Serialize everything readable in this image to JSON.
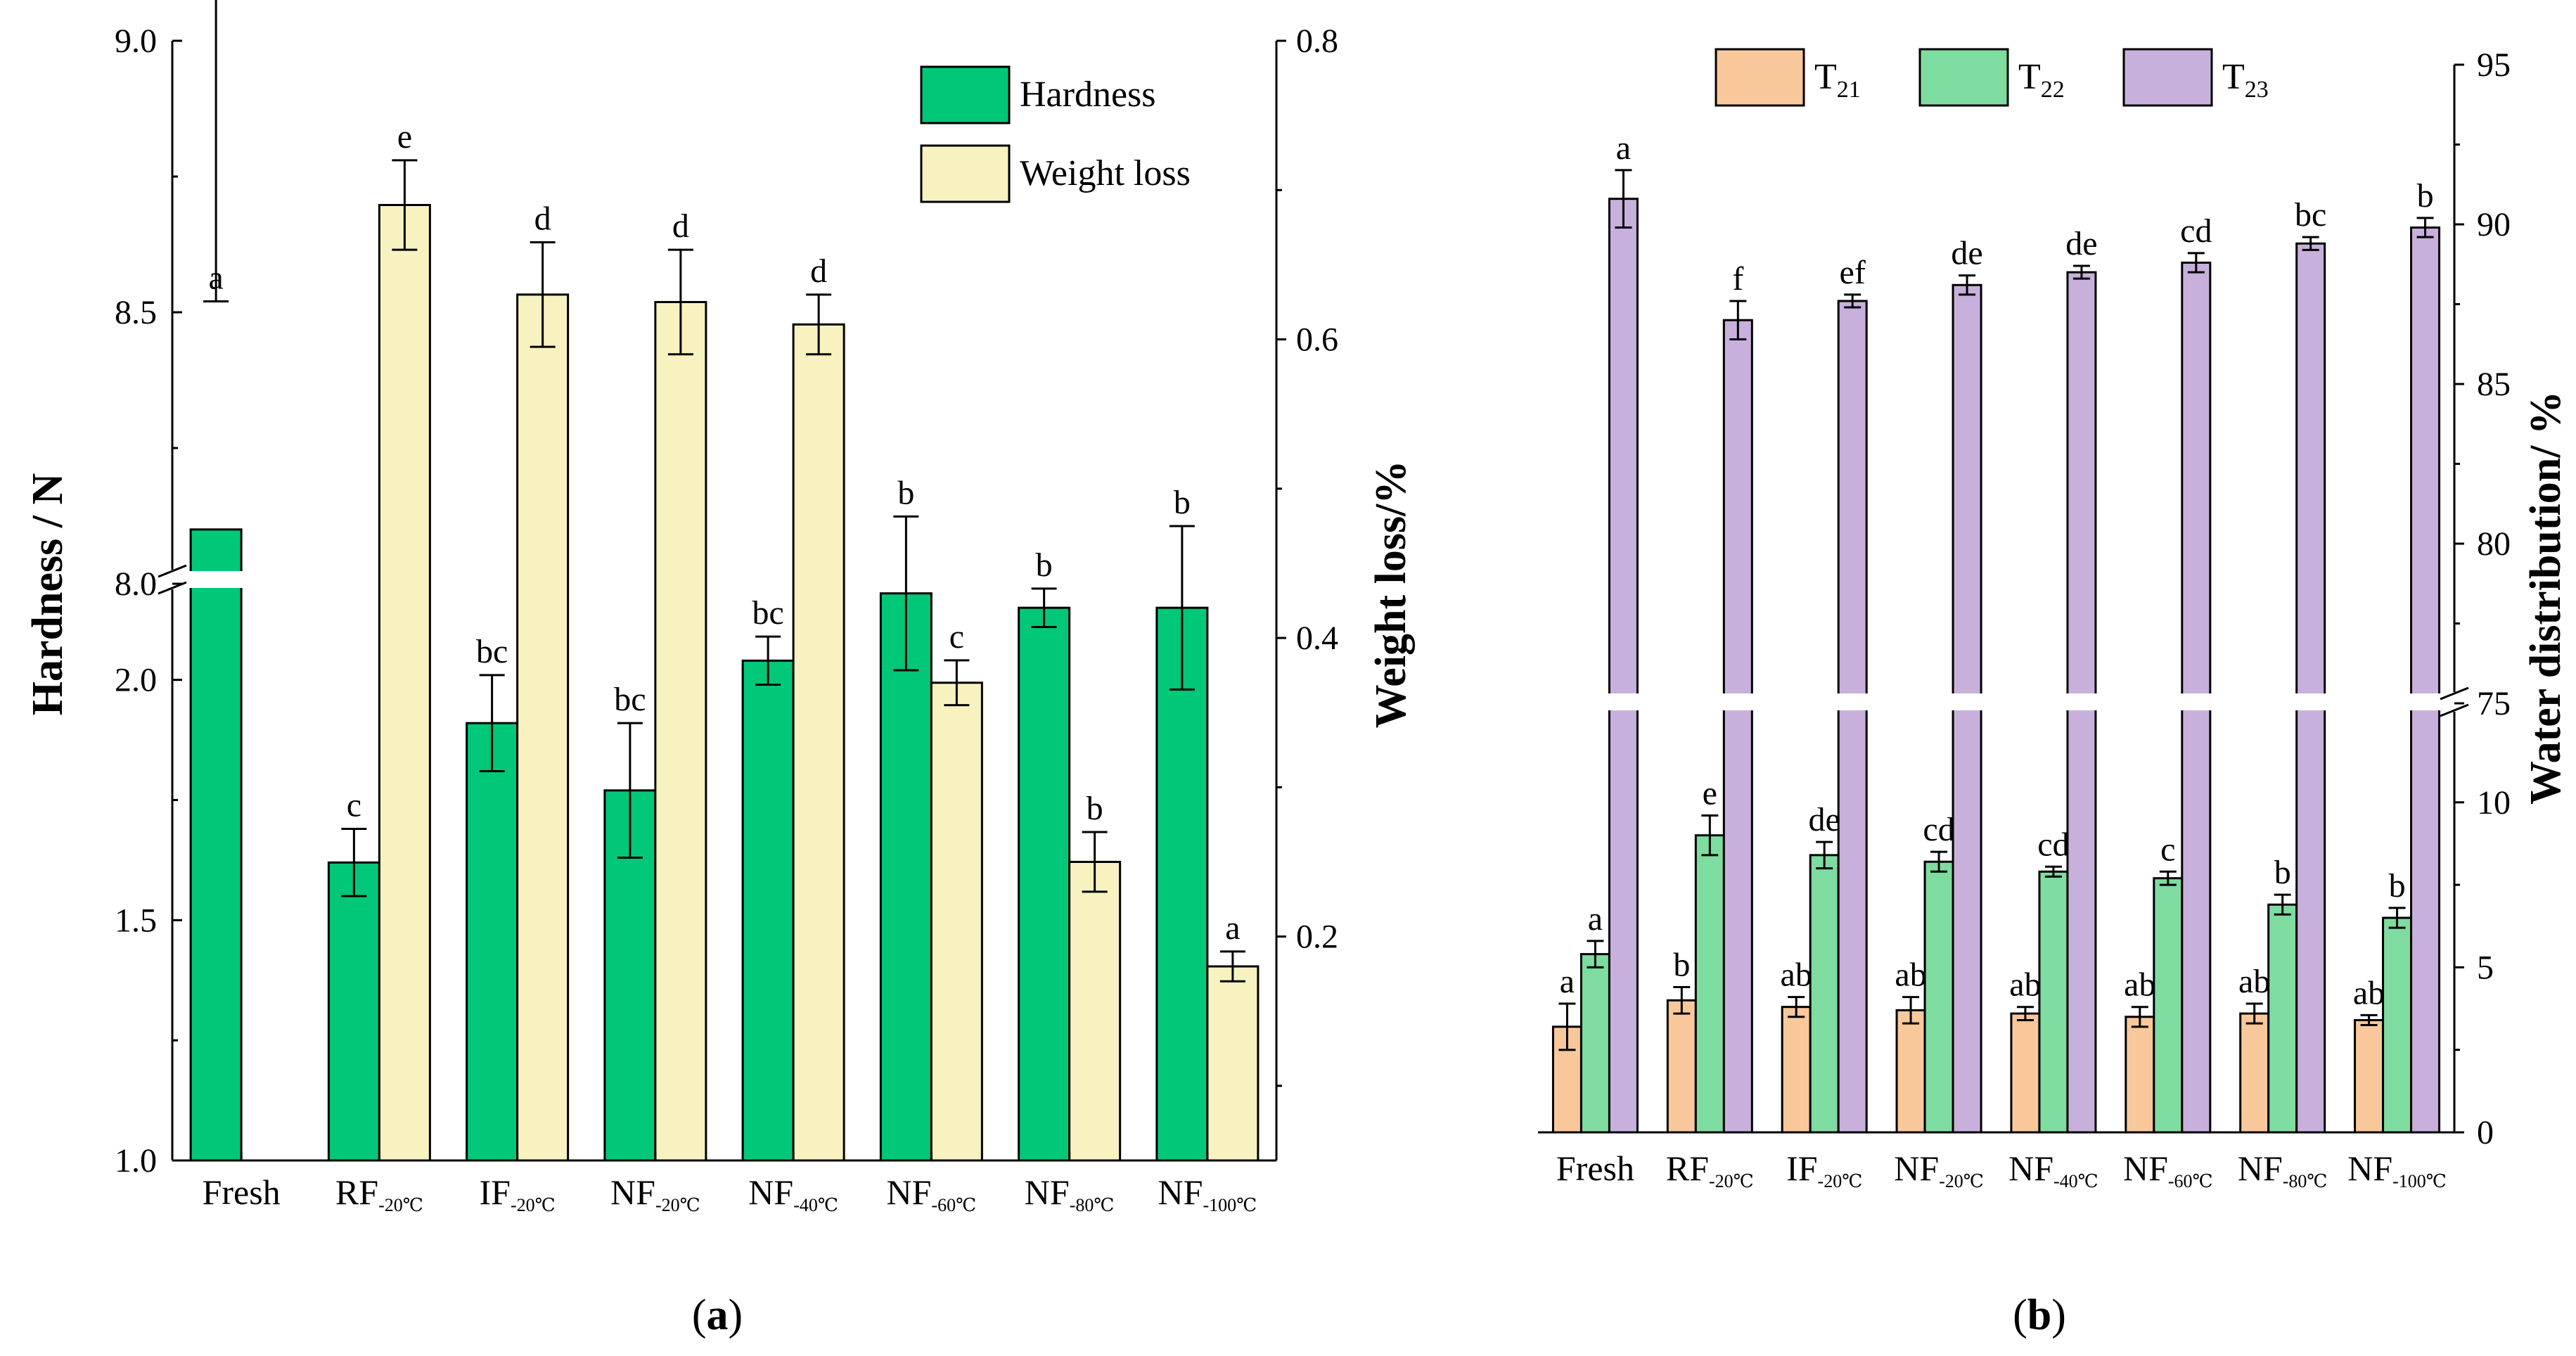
{
  "chart_data": [
    {
      "panel": "(a)",
      "type": "bar",
      "title": "",
      "categories": [
        {
          "main": "Fresh",
          "sub": ""
        },
        {
          "main": "RF",
          "sub": "-20℃"
        },
        {
          "main": "IF",
          "sub": "-20℃"
        },
        {
          "main": "NF",
          "sub": "-20℃"
        },
        {
          "main": "NF",
          "sub": "-40℃"
        },
        {
          "main": "NF",
          "sub": "-60℃"
        },
        {
          "main": "NF",
          "sub": "-80℃"
        },
        {
          "main": "NF",
          "sub": "-100℃"
        }
      ],
      "ylabel_left": "Hardness / N",
      "ylabel_right": "Weight loss/%",
      "left_axis": {
        "lower": [
          1.0,
          2.2
        ],
        "upper": [
          8.0,
          9.0
        ],
        "ticks_lower": [
          "1.0",
          "1.5",
          "2.0"
        ],
        "ticks_upper": [
          "8.0",
          "8.5",
          "9.0"
        ],
        "break": true
      },
      "right_axis": {
        "range": [
          0.05,
          0.8
        ],
        "ticks": [
          "0.2",
          "0.4",
          "0.6",
          "0.8"
        ]
      },
      "legend_position": "top-right",
      "series": [
        {
          "name": "Hardness",
          "axis": "left",
          "color": "#00c878",
          "values": [
            8.1,
            1.62,
            1.91,
            1.77,
            2.04,
            2.18,
            2.15,
            2.15
          ],
          "errors": [
            0.42,
            0.07,
            0.1,
            0.14,
            0.05,
            0.16,
            0.04,
            0.17
          ],
          "labels": [
            "a",
            "c",
            "bc",
            "bc",
            "bc",
            "b",
            "b",
            "b"
          ]
        },
        {
          "name": "Weight loss",
          "axis": "right",
          "color": "#f7f2c0",
          "values": [
            null,
            0.69,
            0.63,
            0.625,
            0.61,
            0.37,
            0.25,
            0.18
          ],
          "errors": [
            null,
            0.03,
            0.035,
            0.035,
            0.02,
            0.015,
            0.02,
            0.01
          ],
          "labels": [
            "",
            "e",
            "d",
            "d",
            "d",
            "c",
            "b",
            "a"
          ]
        }
      ]
    },
    {
      "panel": "(b)",
      "type": "bar",
      "title": "",
      "categories": [
        {
          "main": "Fresh",
          "sub": ""
        },
        {
          "main": "RF",
          "sub": "-20℃"
        },
        {
          "main": "IF",
          "sub": "-20℃"
        },
        {
          "main": "NF",
          "sub": "-20℃"
        },
        {
          "main": "NF",
          "sub": "-40℃"
        },
        {
          "main": "NF",
          "sub": "-60℃"
        },
        {
          "main": "NF",
          "sub": "-80℃"
        },
        {
          "main": "NF",
          "sub": "-100℃"
        }
      ],
      "ylabel_right": "Water distribution/ %",
      "right_axis": {
        "lower": [
          0,
          13
        ],
        "upper": [
          75,
          95
        ],
        "ticks_lower": [
          "0",
          "5",
          "10"
        ],
        "ticks_upper": [
          "75",
          "80",
          "85",
          "90",
          "95"
        ],
        "break": true
      },
      "legend_position": "top",
      "series": [
        {
          "name": "T21",
          "name_main": "T",
          "name_sub": "21",
          "color": "#f9c89a",
          "values": [
            3.2,
            4.0,
            3.8,
            3.7,
            3.6,
            3.5,
            3.6,
            3.4
          ],
          "errors": [
            0.7,
            0.4,
            0.3,
            0.4,
            0.2,
            0.3,
            0.3,
            0.15
          ],
          "labels": [
            "a",
            "b",
            "ab",
            "ab",
            "ab",
            "ab",
            "ab",
            "ab"
          ]
        },
        {
          "name": "T22",
          "name_main": "T",
          "name_sub": "22",
          "color": "#7fdca0",
          "values": [
            5.4,
            9.0,
            8.4,
            8.2,
            7.9,
            7.7,
            6.9,
            6.5
          ],
          "errors": [
            0.4,
            0.6,
            0.4,
            0.3,
            0.15,
            0.2,
            0.3,
            0.3
          ],
          "labels": [
            "a",
            "e",
            "de",
            "cd",
            "cd",
            "c",
            "b",
            "b"
          ]
        },
        {
          "name": "T23",
          "name_main": "T",
          "name_sub": "23",
          "color": "#c8b0dc",
          "values": [
            90.8,
            87.0,
            87.6,
            88.1,
            88.5,
            88.8,
            89.4,
            89.9
          ],
          "errors": [
            0.9,
            0.6,
            0.2,
            0.3,
            0.2,
            0.3,
            0.2,
            0.3
          ],
          "labels": [
            "a",
            "f",
            "ef",
            "de",
            "de",
            "cd",
            "bc",
            "b"
          ]
        }
      ]
    }
  ]
}
